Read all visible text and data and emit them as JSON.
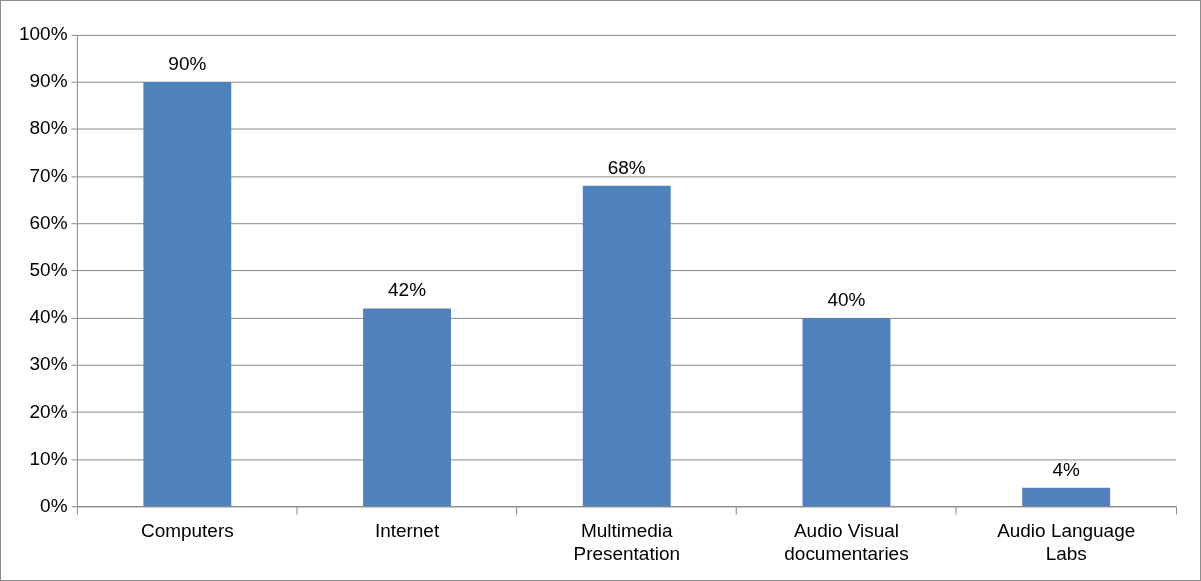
{
  "chart_data": {
    "type": "bar",
    "categories": [
      "Computers",
      "Internet",
      "Multimedia Presentation",
      "Audio Visual documentaries",
      "Audio Language Labs"
    ],
    "values": [
      90,
      42,
      68,
      40,
      4
    ],
    "value_labels": [
      "90%",
      "42%",
      "68%",
      "40%",
      "4%"
    ],
    "color": "#4f81bd",
    "ylim": [
      0,
      100
    ],
    "yticks": [
      {
        "value": 0,
        "label": "0%"
      },
      {
        "value": 10,
        "label": "10%"
      },
      {
        "value": 20,
        "label": "20%"
      },
      {
        "value": 30,
        "label": "30%"
      },
      {
        "value": 40,
        "label": "40%"
      },
      {
        "value": 50,
        "label": "50%"
      },
      {
        "value": 60,
        "label": "60%"
      },
      {
        "value": 70,
        "label": "70%"
      },
      {
        "value": 80,
        "label": "80%"
      },
      {
        "value": 90,
        "label": "90%"
      },
      {
        "value": 100,
        "label": "100%"
      }
    ],
    "grid": "y",
    "legend": false
  }
}
